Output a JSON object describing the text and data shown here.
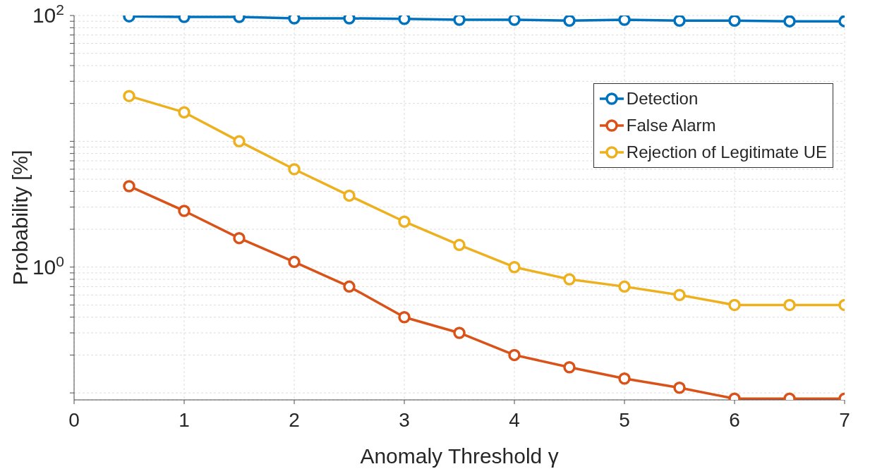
{
  "chart_data": {
    "type": "line",
    "xlabel": "Anomaly Threshold γ",
    "ylabel": "Probability [%]",
    "x": [
      0.5,
      1,
      1.5,
      2,
      2.5,
      3,
      3.5,
      4,
      4.5,
      5,
      5.5,
      6,
      6.5,
      7
    ],
    "series": [
      {
        "name": "Detection",
        "color": "#0072bd",
        "values": [
          98.5,
          97.5,
          97.5,
          95,
          95,
          94,
          92.5,
          92.5,
          91,
          92.5,
          91,
          91,
          90,
          90
        ]
      },
      {
        "name": "False Alarm",
        "color": "#d95319",
        "values": [
          4.4,
          2.8,
          1.7,
          1.1,
          0.7,
          0.4,
          0.3,
          0.2,
          0.16,
          0.13,
          0.11,
          0.09,
          0.09,
          0.09
        ]
      },
      {
        "name": "Rejection of Legitimate UE",
        "color": "#edb120",
        "values": [
          22.9,
          17,
          10,
          6,
          3.7,
          2.3,
          1.5,
          1,
          0.8,
          0.7,
          0.6,
          0.5,
          0.5,
          0.5
        ]
      }
    ],
    "log": "y",
    "xlim": [
      0,
      7
    ],
    "xticks": [
      0,
      1,
      2,
      3,
      4,
      5,
      6,
      7
    ],
    "ylim": [
      0.088,
      100
    ],
    "yticks": [
      {
        "value": 0.1,
        "label": null
      },
      {
        "value": 0.2,
        "label": null
      },
      {
        "value": 0.3,
        "label": null
      },
      {
        "value": 0.4,
        "label": null
      },
      {
        "value": 0.5,
        "label": null
      },
      {
        "value": 0.6,
        "label": null
      },
      {
        "value": 0.7,
        "label": null
      },
      {
        "value": 0.8,
        "label": null
      },
      {
        "value": 0.9,
        "label": null
      },
      {
        "value": 1,
        "label": "10$^{0}$"
      },
      {
        "value": 2,
        "label": null
      },
      {
        "value": 3,
        "label": null
      },
      {
        "value": 4,
        "label": null
      },
      {
        "value": 5,
        "label": null
      },
      {
        "value": 6,
        "label": null
      },
      {
        "value": 7,
        "label": null
      },
      {
        "value": 8,
        "label": null
      },
      {
        "value": 9,
        "label": null
      },
      {
        "value": 10,
        "label": null
      },
      {
        "value": 20,
        "label": null
      },
      {
        "value": 30,
        "label": null
      },
      {
        "value": 40,
        "label": null
      },
      {
        "value": 50,
        "label": null
      },
      {
        "value": 60,
        "label": null
      },
      {
        "value": 70,
        "label": null
      },
      {
        "value": 80,
        "label": null
      },
      {
        "value": 90,
        "label": null
      },
      {
        "value": 100,
        "label": "10$^{2}$"
      }
    ],
    "grid": true,
    "legend": "top right",
    "marker": "circle",
    "line_style": "solid"
  }
}
